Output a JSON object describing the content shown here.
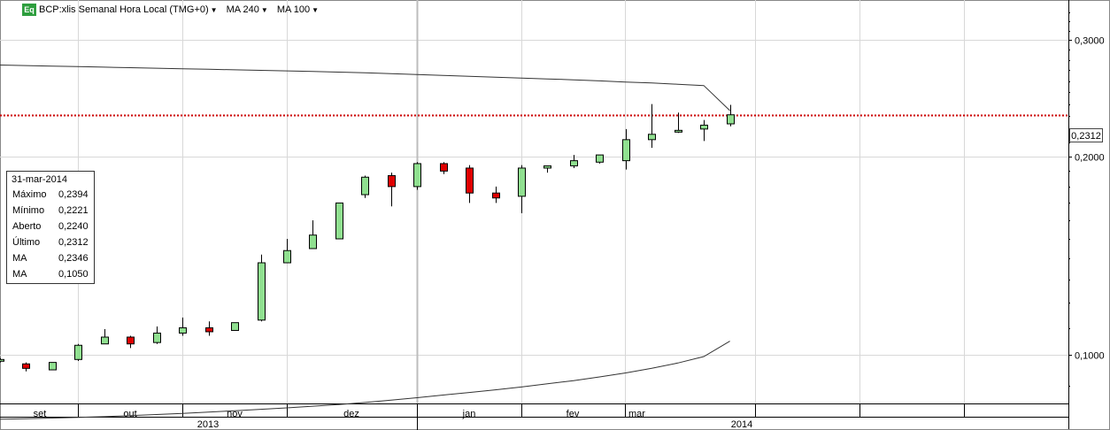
{
  "header": {
    "badge": "Eq",
    "symbol": "BCP:xlis Semanal Hora Local (TMG+0)",
    "ma1": "MA 240",
    "ma2": "MA 100"
  },
  "ohlc_box": {
    "date": "31-mar-2014",
    "rows": [
      {
        "label": "Máximo",
        "value": "0,2394"
      },
      {
        "label": "Mínimo",
        "value": "0,2221"
      },
      {
        "label": "Aberto",
        "value": "0,2240"
      },
      {
        "label": "Último",
        "value": "0,2312"
      },
      {
        "label": "MA",
        "value": "0,2346"
      },
      {
        "label": "MA",
        "value": "0,1050"
      }
    ]
  },
  "last_price_label": "0,2312",
  "colors": {
    "up": "#90e090",
    "down": "#e00000",
    "last_line": "#cc0000",
    "grid": "#d8d8d8"
  },
  "chart_data": {
    "type": "candlestick",
    "y_scale": "log",
    "ylim": [
      0.0845,
      0.345
    ],
    "y_ticks": [
      {
        "value": 0.1,
        "label": "0,1000"
      },
      {
        "value": 0.2,
        "label": "0,2000"
      },
      {
        "value": 0.3,
        "label": "0,3000"
      }
    ],
    "month_labels": [
      "set",
      "out",
      "nov",
      "dez",
      "jan",
      "fev",
      "mar"
    ],
    "year_labels": [
      "2013",
      "2014"
    ],
    "last_price": 0.2312,
    "candles": [
      {
        "o": 0.0985,
        "h": 0.099,
        "l": 0.0975,
        "c": 0.0985
      },
      {
        "o": 0.097,
        "h": 0.0975,
        "l": 0.0945,
        "c": 0.0955
      },
      {
        "o": 0.095,
        "h": 0.0975,
        "l": 0.095,
        "c": 0.0975
      },
      {
        "o": 0.0985,
        "h": 0.104,
        "l": 0.098,
        "c": 0.1035
      },
      {
        "o": 0.104,
        "h": 0.1095,
        "l": 0.104,
        "c": 0.1065
      },
      {
        "o": 0.1065,
        "h": 0.107,
        "l": 0.1025,
        "c": 0.104
      },
      {
        "o": 0.1045,
        "h": 0.1105,
        "l": 0.104,
        "c": 0.108
      },
      {
        "o": 0.108,
        "h": 0.114,
        "l": 0.107,
        "c": 0.11
      },
      {
        "o": 0.11,
        "h": 0.1125,
        "l": 0.107,
        "c": 0.1085
      },
      {
        "o": 0.109,
        "h": 0.112,
        "l": 0.109,
        "c": 0.112
      },
      {
        "o": 0.113,
        "h": 0.142,
        "l": 0.1125,
        "c": 0.138
      },
      {
        "o": 0.138,
        "h": 0.15,
        "l": 0.138,
        "c": 0.144
      },
      {
        "o": 0.145,
        "h": 0.16,
        "l": 0.145,
        "c": 0.152
      },
      {
        "o": 0.15,
        "h": 0.17,
        "l": 0.15,
        "c": 0.17
      },
      {
        "o": 0.175,
        "h": 0.187,
        "l": 0.173,
        "c": 0.186
      },
      {
        "o": 0.187,
        "h": 0.189,
        "l": 0.168,
        "c": 0.18
      },
      {
        "o": 0.18,
        "h": 0.196,
        "l": 0.178,
        "c": 0.195
      },
      {
        "o": 0.195,
        "h": 0.196,
        "l": 0.188,
        "c": 0.19
      },
      {
        "o": 0.192,
        "h": 0.194,
        "l": 0.17,
        "c": 0.176
      },
      {
        "o": 0.176,
        "h": 0.18,
        "l": 0.17,
        "c": 0.173
      },
      {
        "o": 0.174,
        "h": 0.194,
        "l": 0.164,
        "c": 0.192
      },
      {
        "o": 0.192,
        "h": 0.1935,
        "l": 0.189,
        "c": 0.1935
      },
      {
        "o": 0.1935,
        "h": 0.201,
        "l": 0.192,
        "c": 0.197
      },
      {
        "o": 0.196,
        "h": 0.201,
        "l": 0.195,
        "c": 0.201
      },
      {
        "o": 0.197,
        "h": 0.22,
        "l": 0.191,
        "c": 0.212
      },
      {
        "o": 0.212,
        "h": 0.24,
        "l": 0.206,
        "c": 0.216
      },
      {
        "o": 0.218,
        "h": 0.233,
        "l": 0.217,
        "c": 0.219
      },
      {
        "o": 0.22,
        "h": 0.227,
        "l": 0.211,
        "c": 0.223
      },
      {
        "o": 0.224,
        "h": 0.2394,
        "l": 0.2221,
        "c": 0.2312
      }
    ],
    "ma240": [
      0.275,
      0.2745,
      0.274,
      0.2735,
      0.273,
      0.2725,
      0.272,
      0.2715,
      0.271,
      0.2705,
      0.27,
      0.2695,
      0.269,
      0.2683,
      0.2676,
      0.2668,
      0.266,
      0.2652,
      0.2644,
      0.2636,
      0.2628,
      0.262,
      0.2612,
      0.2602,
      0.2592,
      0.2583,
      0.2572,
      0.256,
      0.2346
    ],
    "ma100": [
      0.08,
      0.0801,
      0.0803,
      0.0805,
      0.0807,
      0.081,
      0.0813,
      0.0816,
      0.082,
      0.0824,
      0.0828,
      0.0832,
      0.0837,
      0.0842,
      0.0848,
      0.0855,
      0.0862,
      0.087,
      0.0878,
      0.0886,
      0.0895,
      0.0905,
      0.0915,
      0.0927,
      0.094,
      0.0955,
      0.0973,
      0.0995,
      0.105
    ]
  }
}
